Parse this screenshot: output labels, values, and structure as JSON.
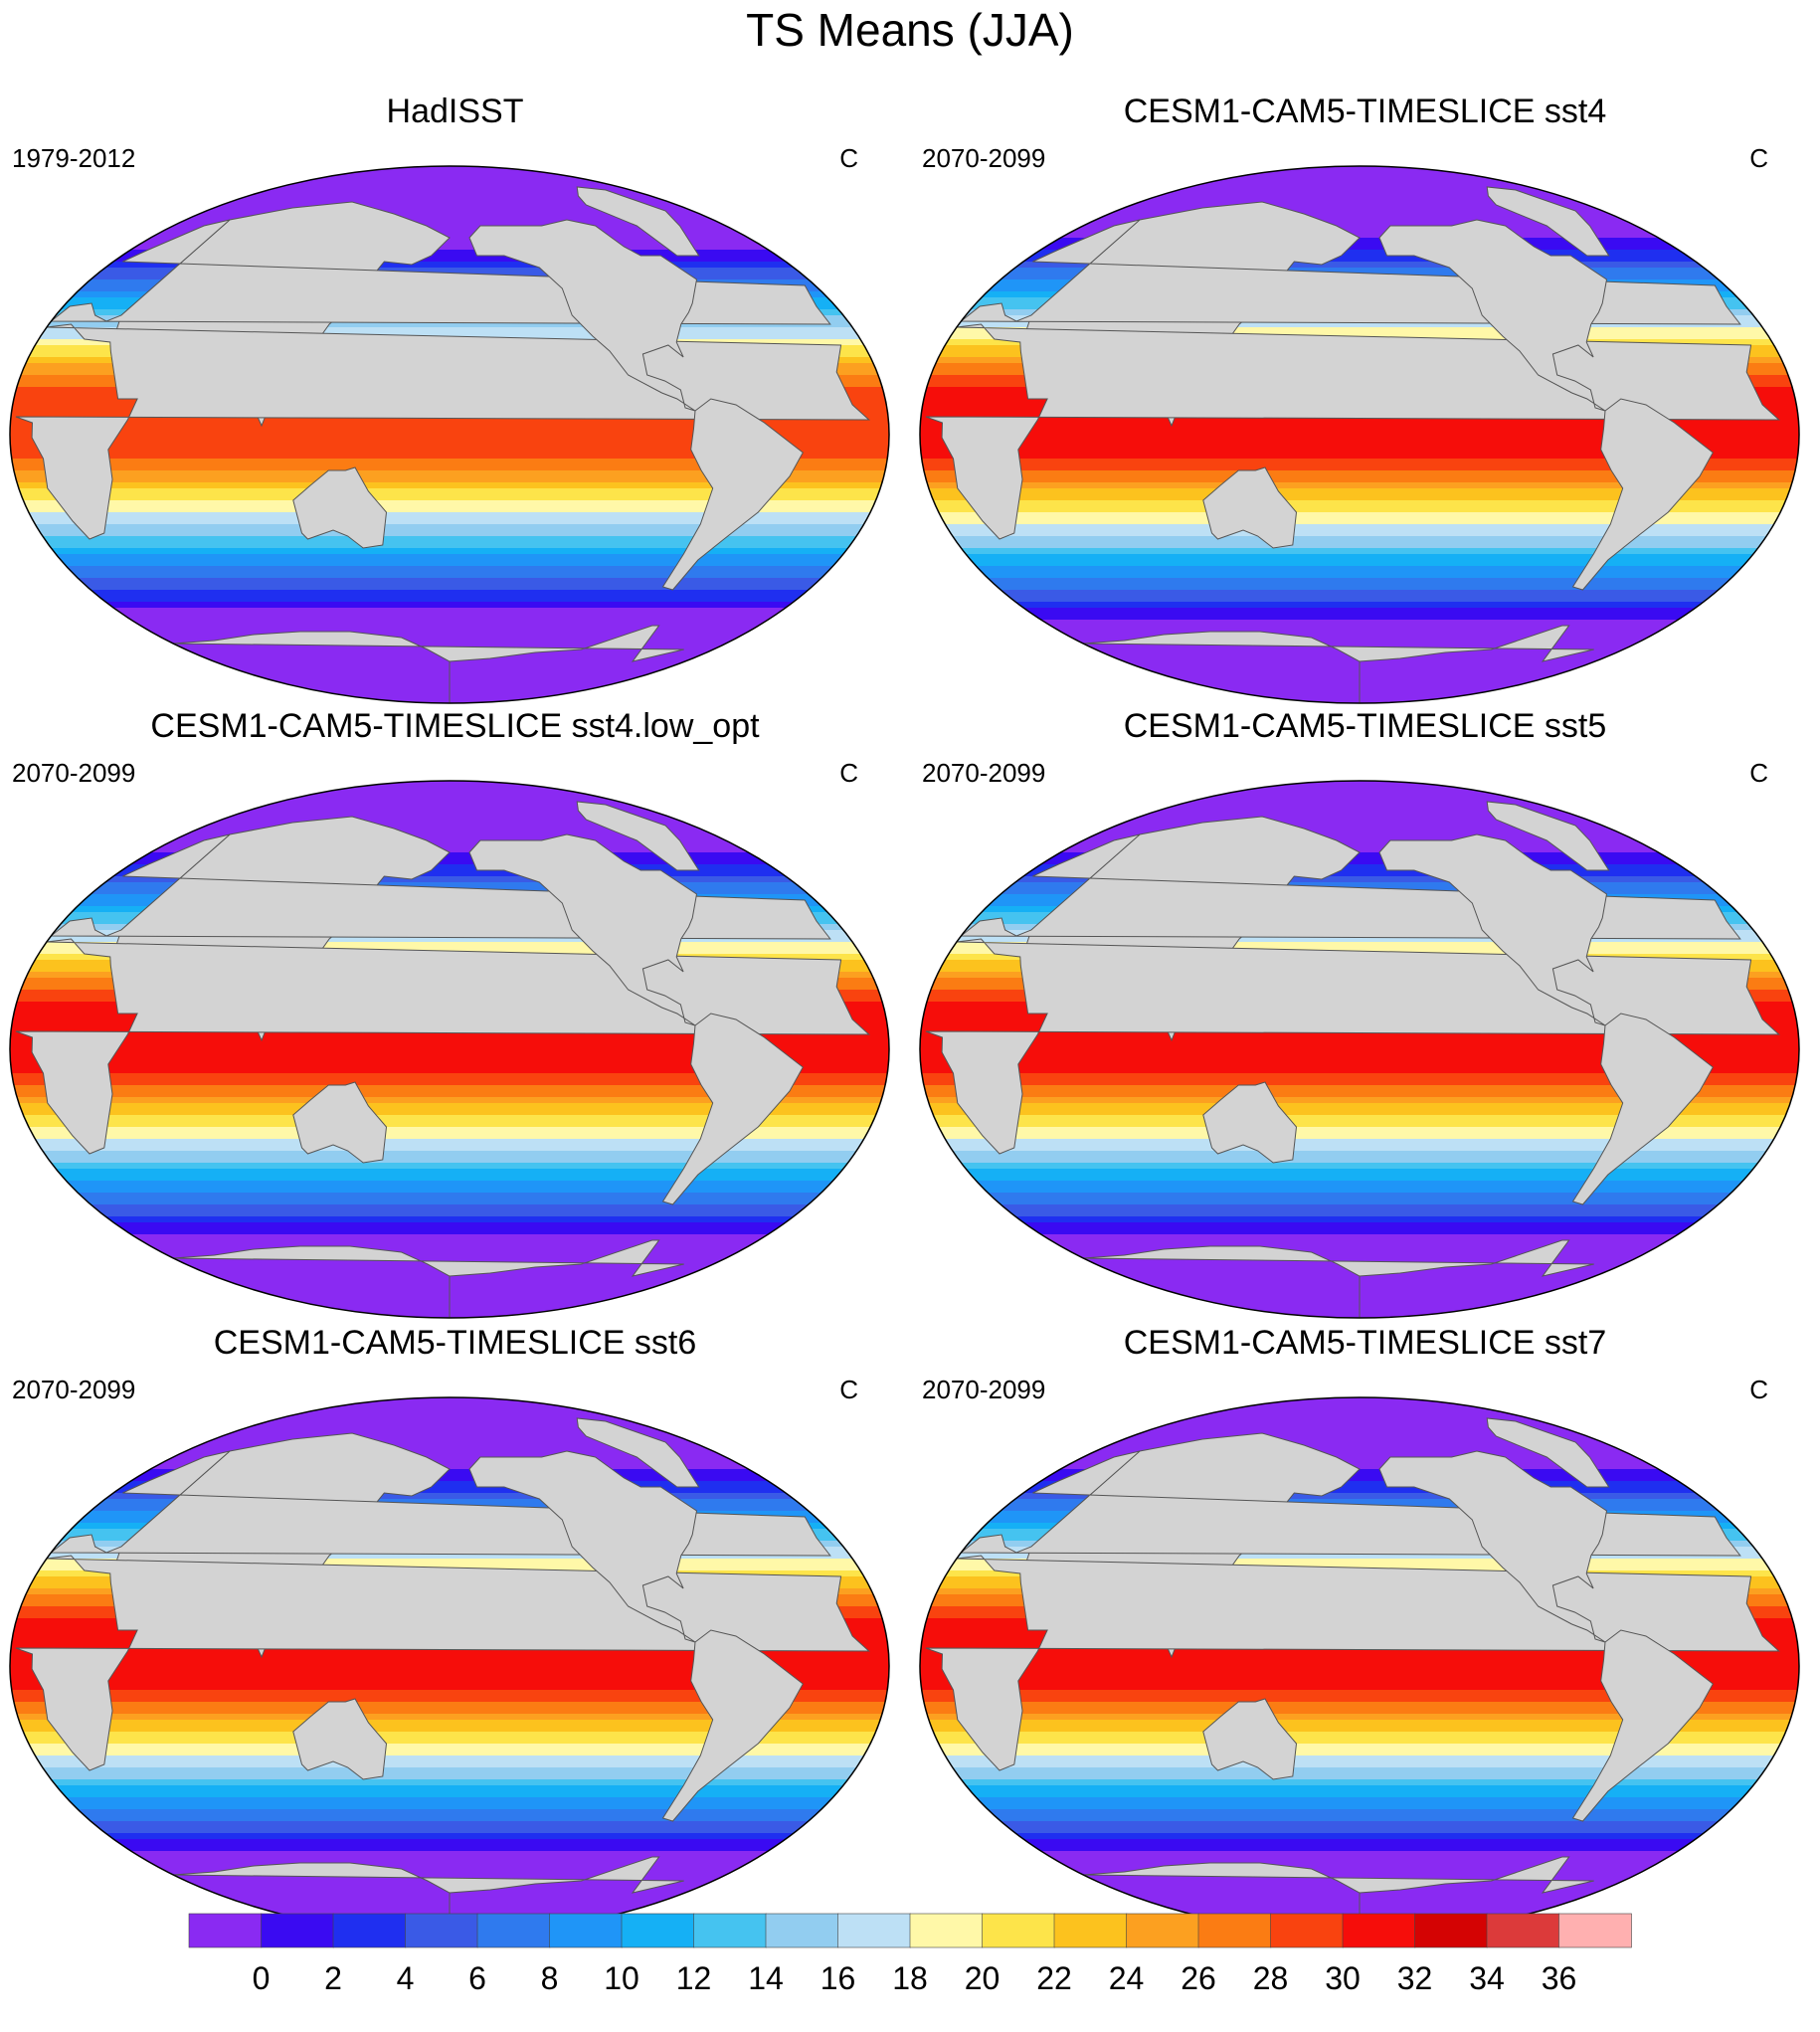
{
  "title": "TS Means (JJA)",
  "panels": [
    {
      "title": "HadISST",
      "period": "1979-2012",
      "units": "C",
      "warm": 0
    },
    {
      "title": "CESM1-CAM5-TIMESLICE sst4",
      "period": "2070-2099",
      "units": "C",
      "warm": 2
    },
    {
      "title": "CESM1-CAM5-TIMESLICE sst4.low_opt",
      "period": "2070-2099",
      "units": "C",
      "warm": 2
    },
    {
      "title": "CESM1-CAM5-TIMESLICE sst5",
      "period": "2070-2099",
      "units": "C",
      "warm": 2
    },
    {
      "title": "CESM1-CAM5-TIMESLICE sst6",
      "period": "2070-2099",
      "units": "C",
      "warm": 2
    },
    {
      "title": "CESM1-CAM5-TIMESLICE sst7",
      "period": "2070-2099",
      "units": "C",
      "warm": 2
    }
  ],
  "chart_data": {
    "type": "heatmap",
    "title": "TS Means (JJA)",
    "projection": "global",
    "units": "C",
    "levels": [
      0,
      2,
      4,
      6,
      8,
      10,
      12,
      14,
      16,
      18,
      20,
      22,
      24,
      26,
      28,
      30,
      32,
      34,
      36
    ],
    "colorbar_labels": [
      "0",
      "2",
      "4",
      "6",
      "8",
      "10",
      "12",
      "14",
      "16",
      "18",
      "20",
      "22",
      "24",
      "26",
      "28",
      "30",
      "32",
      "34",
      "36"
    ],
    "colors": [
      "#8a2af2",
      "#3a0af2",
      "#1f2ff0",
      "#3a5ae6",
      "#2f7aee",
      "#1f95f7",
      "#15b0f5",
      "#45c3f0",
      "#92cdf0",
      "#bde0f5",
      "#fff8a8",
      "#fde44a",
      "#fcc21e",
      "#fca020",
      "#fb7c13",
      "#f9430f",
      "#f60d0a",
      "#d40303",
      "#dc3a3a",
      "#ffb0b0"
    ],
    "land_color": "#d3d3d3",
    "land_under_ice_color": "#ffffff",
    "panels": [
      {
        "title": "HadISST",
        "period": "1979-2012",
        "approx_max": 30
      },
      {
        "title": "CESM1-CAM5-TIMESLICE sst4",
        "period": "2070-2099",
        "approx_max": 34
      },
      {
        "title": "CESM1-CAM5-TIMESLICE sst4.low_opt",
        "period": "2070-2099",
        "approx_max": 34
      },
      {
        "title": "CESM1-CAM5-TIMESLICE sst5",
        "period": "2070-2099",
        "approx_max": 34
      },
      {
        "title": "CESM1-CAM5-TIMESLICE sst6",
        "period": "2070-2099",
        "approx_max": 34
      },
      {
        "title": "CESM1-CAM5-TIMESLICE sst7",
        "period": "2070-2099",
        "approx_max": 34
      }
    ]
  }
}
